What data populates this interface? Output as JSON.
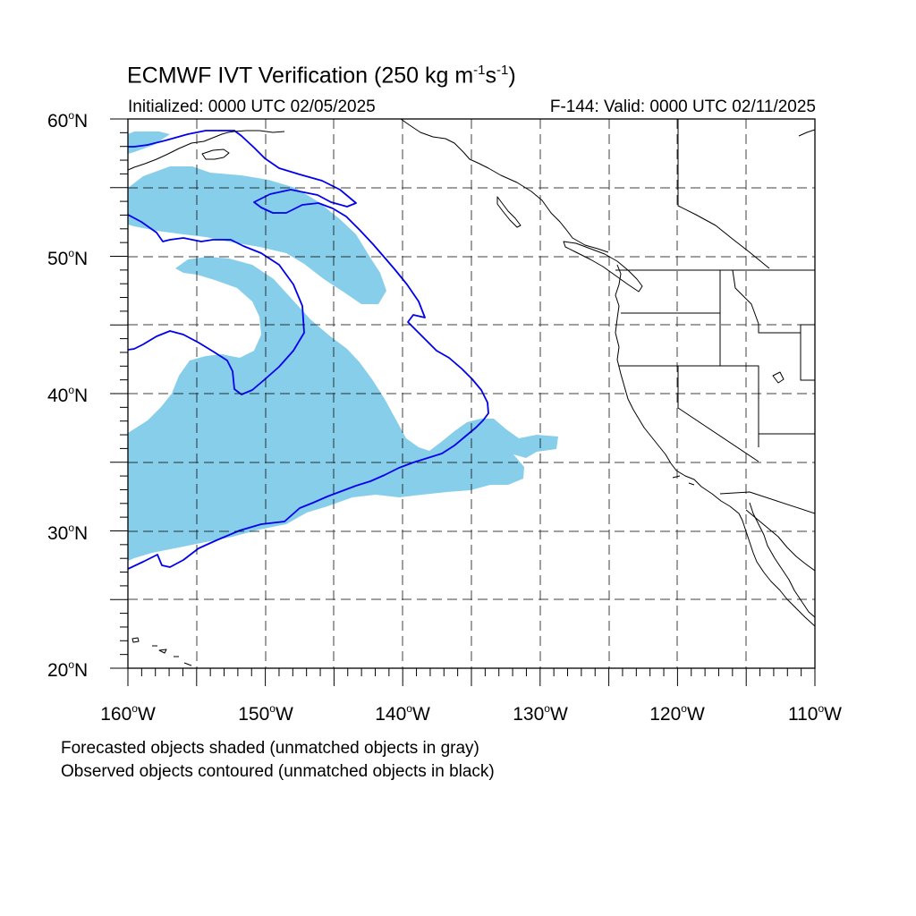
{
  "map": {
    "title_prefix": "ECMWF IVT Verification (250 kg m",
    "title_exp1": "-1",
    "title_mid": "s",
    "title_exp2": "-1",
    "title_suffix": ")",
    "initialized": "Initialized: 0000 UTC 02/05/2025",
    "valid": "F-144: Valid: 0000 UTC 02/11/2025",
    "extent": {
      "lon_min": -160,
      "lon_max": -110,
      "lat_min": 20,
      "lat_max": 60
    },
    "lat_labels": [
      {
        "num": "60",
        "hemi": "N"
      },
      {
        "num": "50",
        "hemi": "N"
      },
      {
        "num": "40",
        "hemi": "N"
      },
      {
        "num": "30",
        "hemi": "N"
      },
      {
        "num": "20",
        "hemi": "N"
      }
    ],
    "lon_labels": [
      {
        "num": "160",
        "hemi": "W"
      },
      {
        "num": "150",
        "hemi": "W"
      },
      {
        "num": "140",
        "hemi": "W"
      },
      {
        "num": "130",
        "hemi": "W"
      },
      {
        "num": "120",
        "hemi": "W"
      },
      {
        "num": "110",
        "hemi": "W"
      }
    ],
    "degree_symbol": "o",
    "caption_forecast": "Forecasted objects shaded (unmatched objects in gray)",
    "caption_observed": "Observed objects contoured (unmatched objects in black)",
    "colors": {
      "forecast_fill": "#87ceeb",
      "observed_contour": "#0000ee",
      "coastline": "#000000",
      "grid": "#000000"
    }
  }
}
